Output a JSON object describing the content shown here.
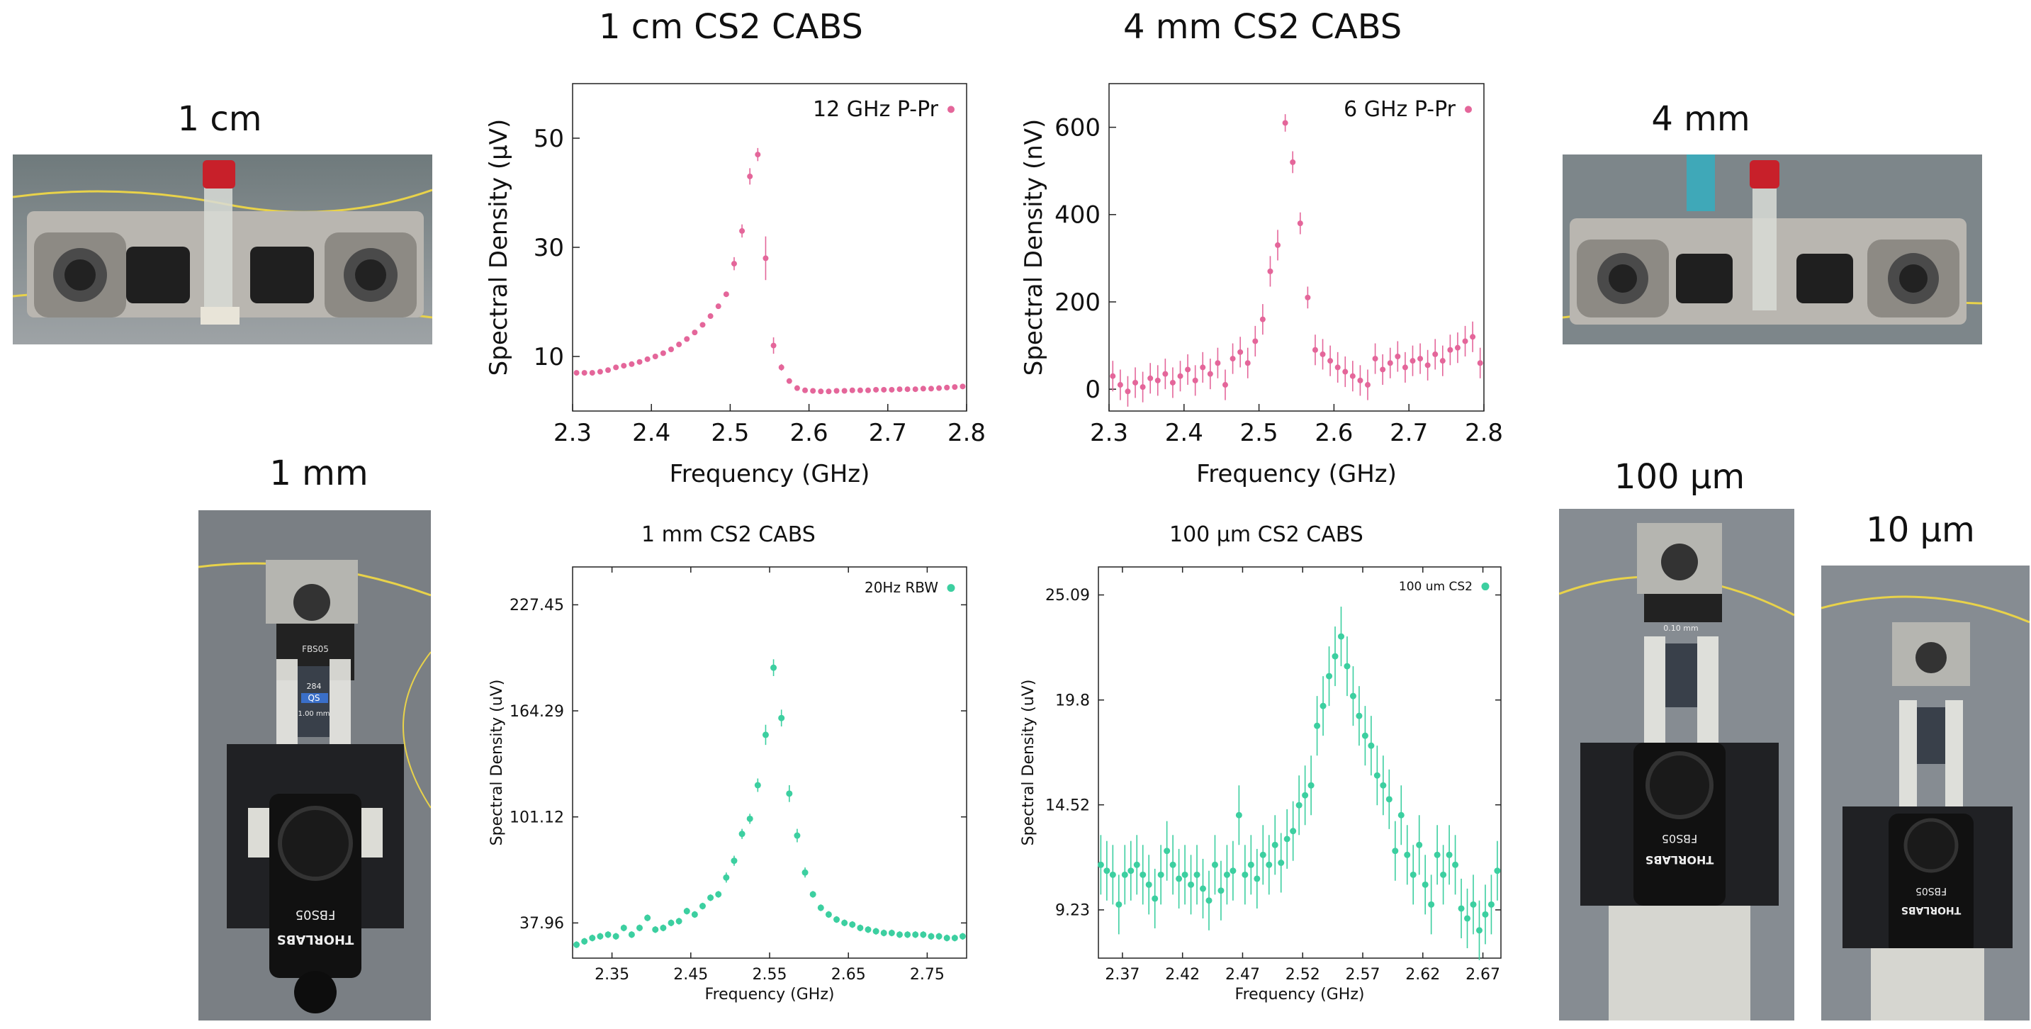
{
  "titles": {
    "top_left": "1 cm CS2 CABS",
    "top_right": "4 mm CS2 CABS",
    "bottom_left": "1 mm CS2 CABS",
    "bottom_right": "100 µm CS2 CABS"
  },
  "photo_labels": {
    "p1cm": "1 cm",
    "p4mm": "4 mm",
    "p1mm": "1 mm",
    "p100um": "100 μm",
    "p10um": "10 μm"
  },
  "photo_texts": {
    "cuvette_1mm_top": "284",
    "cuvette_1mm_mid": "QS",
    "cuvette_1mm_size": "1.00 mm",
    "mount_model": "FBS05",
    "mount_brand": "THORLABS",
    "cuvette_100um_size": "0.10 mm"
  },
  "colors": {
    "pink": "#e4669a",
    "green": "#3ccfa0",
    "axis": "#222222"
  },
  "chart_data": [
    {
      "type": "scatter",
      "title": "1 cm CS2 CABS",
      "xlabel": "Frequency (GHz)",
      "ylabel": "Spectral Density (μV)",
      "xlim": [
        2.3,
        2.8
      ],
      "ylim": [
        0,
        60
      ],
      "xticks": [
        2.3,
        2.4,
        2.5,
        2.6,
        2.7,
        2.8
      ],
      "yticks": [
        10,
        30,
        50
      ],
      "legend": "top-right",
      "series": [
        {
          "name": "12 GHz P-Pr",
          "color": "#e4669a",
          "x": [
            2.305,
            2.315,
            2.325,
            2.335,
            2.345,
            2.355,
            2.365,
            2.375,
            2.385,
            2.395,
            2.405,
            2.415,
            2.425,
            2.435,
            2.445,
            2.455,
            2.465,
            2.475,
            2.485,
            2.495,
            2.505,
            2.515,
            2.525,
            2.535,
            2.545,
            2.555,
            2.565,
            2.575,
            2.585,
            2.595,
            2.605,
            2.615,
            2.625,
            2.635,
            2.645,
            2.655,
            2.665,
            2.675,
            2.685,
            2.695,
            2.705,
            2.715,
            2.725,
            2.735,
            2.745,
            2.755,
            2.765,
            2.775,
            2.785,
            2.795
          ],
          "y": [
            7,
            7,
            7,
            7.2,
            7.5,
            8,
            8.3,
            8.6,
            9,
            9.5,
            10,
            10.6,
            11.3,
            12.2,
            13.2,
            14.4,
            15.8,
            17.4,
            19.2,
            21.4,
            27,
            33,
            43,
            47,
            28,
            12,
            8,
            5.5,
            4.2,
            3.8,
            3.7,
            3.6,
            3.6,
            3.7,
            3.7,
            3.8,
            3.8,
            3.8,
            3.9,
            3.9,
            3.9,
            4,
            4,
            4,
            4.1,
            4.1,
            4.2,
            4.3,
            4.4,
            4.5
          ],
          "err": [
            0.3,
            0.3,
            0.3,
            0.3,
            0.3,
            0.3,
            0.3,
            0.3,
            0.3,
            0.3,
            0.3,
            0.3,
            0.3,
            0.3,
            0.3,
            0.3,
            0.3,
            0.4,
            0.4,
            0.5,
            1.2,
            1.2,
            1.5,
            1.2,
            4,
            1.5,
            0.6,
            0.3,
            0.3,
            0.3,
            0.3,
            0.3,
            0.3,
            0.3,
            0.3,
            0.3,
            0.3,
            0.3,
            0.3,
            0.3,
            0.3,
            0.3,
            0.3,
            0.3,
            0.3,
            0.3,
            0.3,
            0.3,
            0.3,
            0.3
          ]
        }
      ]
    },
    {
      "type": "scatter",
      "title": "4 mm CS2 CABS",
      "xlabel": "Frequency (GHz)",
      "ylabel": "Spectral Density (nV)",
      "xlim": [
        2.3,
        2.8
      ],
      "ylim": [
        -50,
        700
      ],
      "xticks": [
        2.3,
        2.4,
        2.5,
        2.6,
        2.7,
        2.8
      ],
      "yticks": [
        0,
        200,
        400,
        600
      ],
      "legend": "top-right",
      "series": [
        {
          "name": "6 GHz P-Pr",
          "color": "#e4669a",
          "x": [
            2.305,
            2.315,
            2.325,
            2.335,
            2.345,
            2.355,
            2.365,
            2.375,
            2.385,
            2.395,
            2.405,
            2.415,
            2.425,
            2.435,
            2.445,
            2.455,
            2.465,
            2.475,
            2.485,
            2.495,
            2.505,
            2.515,
            2.525,
            2.535,
            2.545,
            2.555,
            2.565,
            2.575,
            2.585,
            2.595,
            2.605,
            2.615,
            2.625,
            2.635,
            2.645,
            2.655,
            2.665,
            2.675,
            2.685,
            2.695,
            2.705,
            2.715,
            2.725,
            2.735,
            2.745,
            2.755,
            2.765,
            2.775,
            2.785,
            2.795
          ],
          "y": [
            30,
            10,
            -5,
            15,
            5,
            25,
            20,
            35,
            15,
            30,
            45,
            20,
            50,
            35,
            60,
            10,
            70,
            85,
            60,
            110,
            160,
            270,
            330,
            610,
            520,
            380,
            210,
            90,
            80,
            65,
            50,
            40,
            30,
            20,
            10,
            70,
            45,
            60,
            75,
            50,
            65,
            70,
            55,
            80,
            65,
            90,
            95,
            110,
            120,
            60
          ],
          "err": [
            35,
            35,
            35,
            35,
            35,
            35,
            35,
            35,
            35,
            35,
            35,
            35,
            35,
            35,
            35,
            35,
            35,
            35,
            35,
            35,
            35,
            35,
            35,
            20,
            25,
            25,
            25,
            35,
            35,
            35,
            35,
            35,
            35,
            35,
            35,
            35,
            35,
            35,
            35,
            35,
            35,
            35,
            35,
            35,
            35,
            35,
            35,
            35,
            35,
            35
          ]
        }
      ]
    },
    {
      "type": "scatter",
      "title": "1 mm CS2 CABS",
      "xlabel": "Frequency (GHz)",
      "ylabel": "Spectral Density (uV)",
      "xlim": [
        2.3,
        2.8
      ],
      "ylim": [
        17,
        250
      ],
      "xticks": [
        2.35,
        2.45,
        2.55,
        2.65,
        2.75
      ],
      "yticks": [
        37.96,
        101.12,
        164.29,
        227.45
      ],
      "legend": "top-right",
      "series": [
        {
          "name": "20Hz RBW",
          "color": "#3ccfa0",
          "x": [
            2.305,
            2.315,
            2.325,
            2.335,
            2.345,
            2.355,
            2.365,
            2.375,
            2.385,
            2.395,
            2.405,
            2.415,
            2.425,
            2.435,
            2.445,
            2.455,
            2.465,
            2.475,
            2.485,
            2.495,
            2.505,
            2.515,
            2.525,
            2.535,
            2.545,
            2.555,
            2.565,
            2.575,
            2.585,
            2.595,
            2.605,
            2.615,
            2.625,
            2.635,
            2.645,
            2.655,
            2.665,
            2.675,
            2.685,
            2.695,
            2.705,
            2.715,
            2.725,
            2.735,
            2.745,
            2.755,
            2.765,
            2.775,
            2.785,
            2.795
          ],
          "y": [
            25,
            27,
            29,
            30,
            31,
            30,
            35,
            31,
            35,
            41,
            34,
            35,
            38,
            39,
            45,
            43,
            48,
            53,
            55,
            65,
            75,
            91,
            100,
            120,
            150,
            190,
            160,
            115,
            90,
            68,
            55,
            47,
            43,
            40,
            38,
            37,
            35,
            34,
            33,
            32,
            32,
            31,
            31,
            31,
            31,
            30,
            30,
            29,
            29,
            30
          ],
          "err": [
            2,
            2,
            2,
            2,
            2,
            2,
            2,
            2,
            2,
            2,
            2,
            2,
            2,
            2,
            2,
            2,
            2,
            2,
            2,
            3,
            3,
            3,
            3,
            4,
            6,
            5,
            5,
            5,
            4,
            3,
            2,
            2,
            2,
            2,
            2,
            2,
            2,
            2,
            2,
            2,
            2,
            2,
            2,
            2,
            2,
            2,
            2,
            2,
            2,
            2
          ]
        }
      ]
    },
    {
      "type": "scatter",
      "title": "100 µm CS2 CABS",
      "xlabel": "Frequency (GHz)",
      "ylabel": "Spectral Density (uV)",
      "xlim": [
        2.35,
        2.685
      ],
      "ylim": [
        6.8,
        26.5
      ],
      "xticks": [
        2.37,
        2.42,
        2.47,
        2.52,
        2.57,
        2.62,
        2.67
      ],
      "yticks": [
        9.23,
        14.52,
        19.8,
        25.09
      ],
      "legend": "top-right",
      "series": [
        {
          "name": "100 um CS2",
          "color": "#3ccfa0",
          "x": [
            2.352,
            2.357,
            2.362,
            2.367,
            2.372,
            2.377,
            2.382,
            2.387,
            2.392,
            2.397,
            2.402,
            2.407,
            2.412,
            2.417,
            2.422,
            2.427,
            2.432,
            2.437,
            2.442,
            2.447,
            2.452,
            2.457,
            2.462,
            2.467,
            2.472,
            2.477,
            2.482,
            2.487,
            2.492,
            2.497,
            2.502,
            2.507,
            2.512,
            2.517,
            2.522,
            2.527,
            2.532,
            2.537,
            2.542,
            2.547,
            2.552,
            2.557,
            2.562,
            2.567,
            2.572,
            2.577,
            2.582,
            2.587,
            2.592,
            2.597,
            2.602,
            2.607,
            2.612,
            2.617,
            2.622,
            2.627,
            2.632,
            2.637,
            2.642,
            2.647,
            2.652,
            2.657,
            2.662,
            2.667,
            2.672,
            2.677,
            2.682
          ],
          "y": [
            11.5,
            11.2,
            11,
            9.5,
            11,
            11.2,
            11.5,
            11,
            10.5,
            9.8,
            11,
            12.2,
            11.5,
            10.8,
            11,
            10.5,
            11,
            10.3,
            9.7,
            11.5,
            10.2,
            11,
            11.2,
            14,
            11,
            11.5,
            10.8,
            12,
            11.5,
            12.5,
            11.6,
            12.8,
            13.2,
            14.5,
            15,
            15.5,
            18.5,
            19.5,
            21,
            22,
            23,
            21.5,
            20,
            19,
            18,
            17.5,
            16,
            15.5,
            14.8,
            12.2,
            14,
            12,
            11,
            12.5,
            10.5,
            9.5,
            12,
            11,
            12,
            11.5,
            9.3,
            8.8,
            9.5,
            8.2,
            9,
            9.5,
            11.2
          ],
          "err": [
            1.5,
            1.5,
            1.5,
            1.5,
            1.5,
            1.5,
            1.5,
            1.5,
            1.5,
            1.5,
            1.5,
            1.5,
            1.5,
            1.5,
            1.5,
            1.5,
            1.5,
            1.5,
            1.5,
            1.5,
            1.5,
            1.5,
            1.5,
            1.5,
            1.5,
            1.5,
            1.5,
            1.5,
            1.5,
            1.5,
            1.5,
            1.5,
            1.5,
            1.5,
            1.5,
            1.5,
            1.5,
            1.5,
            1.5,
            1.5,
            1.5,
            1.5,
            1.5,
            1.5,
            1.5,
            1.5,
            1.5,
            1.5,
            1.5,
            1.5,
            1.5,
            1.5,
            1.5,
            1.5,
            1.5,
            1.5,
            1.5,
            1.5,
            1.5,
            1.5,
            1.5,
            1.5,
            1.5,
            1.5,
            1.5,
            1.5,
            1.5
          ]
        }
      ]
    }
  ]
}
